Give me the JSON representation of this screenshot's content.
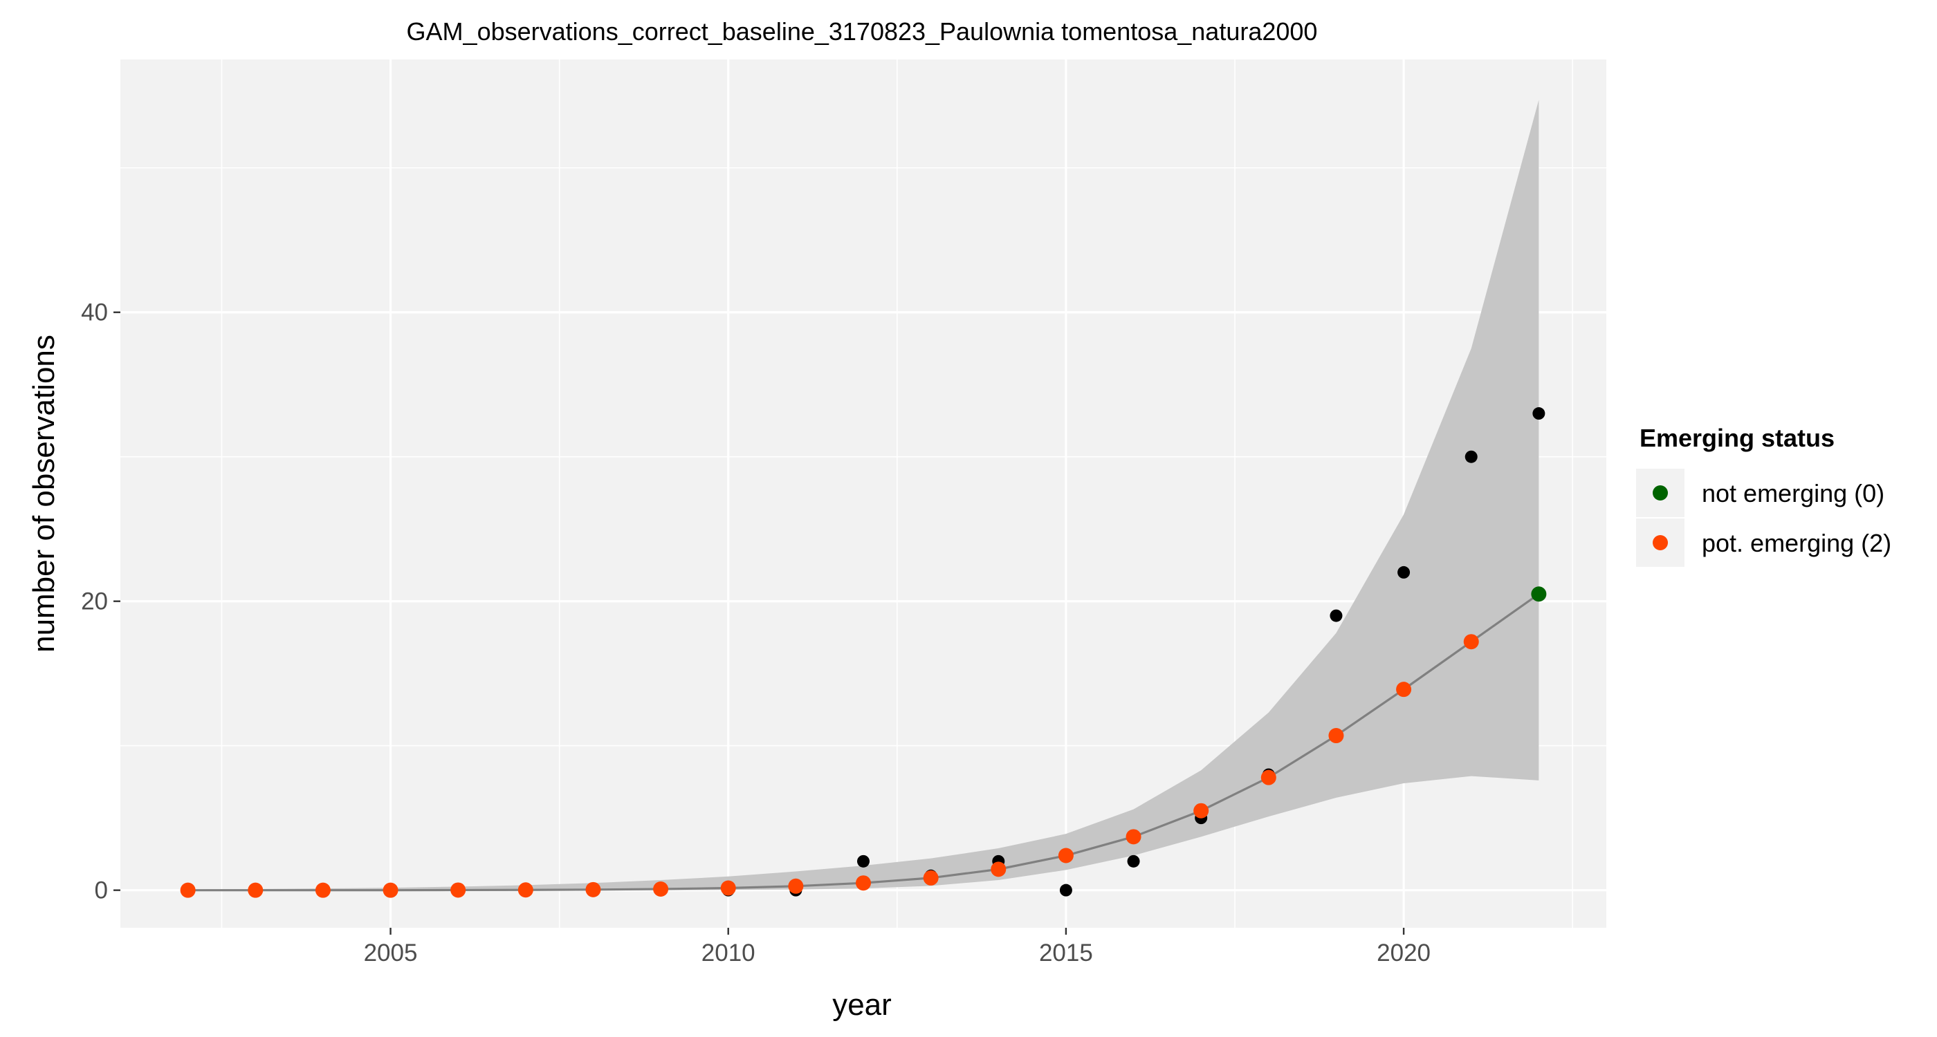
{
  "chart_data": {
    "type": "scatter",
    "title": "GAM_observations_correct_baseline_3170823_Paulownia tomentosa_natura2000",
    "xlabel": "year",
    "ylabel": "number of observations",
    "xlim": [
      2001.0,
      2023.0
    ],
    "ylim": [
      -2.6,
      57.5
    ],
    "x_ticks": [
      2005,
      2010,
      2015,
      2020
    ],
    "x_tick_labels": [
      "2005",
      "2010",
      "2015",
      "2020"
    ],
    "y_ticks": [
      0,
      20,
      40
    ],
    "y_tick_labels": [
      "0",
      "20",
      "40"
    ],
    "grid": true,
    "legend": {
      "title": "Emerging status",
      "placement": "right",
      "entries": [
        {
          "label": "not emerging (0)",
          "color": "#006400"
        },
        {
          "label": "pot. emerging (2)",
          "color": "#ff4500"
        }
      ]
    },
    "observed": {
      "color": "#000000",
      "points": [
        {
          "x": 2002,
          "y": 0
        },
        {
          "x": 2003,
          "y": 0
        },
        {
          "x": 2004,
          "y": 0
        },
        {
          "x": 2005,
          "y": 0
        },
        {
          "x": 2006,
          "y": 0
        },
        {
          "x": 2007,
          "y": 0
        },
        {
          "x": 2008,
          "y": 0
        },
        {
          "x": 2009,
          "y": 0
        },
        {
          "x": 2010,
          "y": 0
        },
        {
          "x": 2011,
          "y": 0
        },
        {
          "x": 2012,
          "y": 2
        },
        {
          "x": 2013,
          "y": 1
        },
        {
          "x": 2014,
          "y": 2
        },
        {
          "x": 2015,
          "y": 0
        },
        {
          "x": 2016,
          "y": 2
        },
        {
          "x": 2017,
          "y": 5
        },
        {
          "x": 2018,
          "y": 8
        },
        {
          "x": 2019,
          "y": 19
        },
        {
          "x": 2020,
          "y": 22
        },
        {
          "x": 2021,
          "y": 30
        },
        {
          "x": 2022,
          "y": 33
        }
      ]
    },
    "fitted": {
      "line_color": "#808080",
      "band_color": "#c6c6c6",
      "points": [
        {
          "x": 2002,
          "y": 0.0,
          "lower": 0.0,
          "upper": 0.05,
          "status": "pot. emerging (2)"
        },
        {
          "x": 2003,
          "y": 0.0,
          "lower": 0.0,
          "upper": 0.08,
          "status": "pot. emerging (2)"
        },
        {
          "x": 2004,
          "y": 0.0,
          "lower": 0.0,
          "upper": 0.12,
          "status": "pot. emerging (2)"
        },
        {
          "x": 2005,
          "y": 0.0,
          "lower": 0.0,
          "upper": 0.17,
          "status": "pot. emerging (2)"
        },
        {
          "x": 2006,
          "y": 0.01,
          "lower": 0.0,
          "upper": 0.25,
          "status": "pot. emerging (2)"
        },
        {
          "x": 2007,
          "y": 0.02,
          "lower": 0.0,
          "upper": 0.35,
          "status": "pot. emerging (2)"
        },
        {
          "x": 2008,
          "y": 0.04,
          "lower": 0.0,
          "upper": 0.5,
          "status": "pot. emerging (2)"
        },
        {
          "x": 2009,
          "y": 0.08,
          "lower": 0.0,
          "upper": 0.7,
          "status": "pot. emerging (2)"
        },
        {
          "x": 2010,
          "y": 0.15,
          "lower": 0.02,
          "upper": 0.95,
          "status": "pot. emerging (2)"
        },
        {
          "x": 2011,
          "y": 0.28,
          "lower": 0.05,
          "upper": 1.3,
          "status": "pot. emerging (2)"
        },
        {
          "x": 2012,
          "y": 0.5,
          "lower": 0.12,
          "upper": 1.7,
          "status": "pot. emerging (2)"
        },
        {
          "x": 2013,
          "y": 0.85,
          "lower": 0.3,
          "upper": 2.2,
          "status": "pot. emerging (2)"
        },
        {
          "x": 2014,
          "y": 1.45,
          "lower": 0.7,
          "upper": 2.9,
          "status": "pot. emerging (2)"
        },
        {
          "x": 2015,
          "y": 2.4,
          "lower": 1.4,
          "upper": 3.9,
          "status": "pot. emerging (2)"
        },
        {
          "x": 2016,
          "y": 3.7,
          "lower": 2.4,
          "upper": 5.6,
          "status": "pot. emerging (2)"
        },
        {
          "x": 2017,
          "y": 5.5,
          "lower": 3.7,
          "upper": 8.3,
          "status": "pot. emerging (2)"
        },
        {
          "x": 2018,
          "y": 7.8,
          "lower": 5.1,
          "upper": 12.3,
          "status": "pot. emerging (2)"
        },
        {
          "x": 2019,
          "y": 10.7,
          "lower": 6.4,
          "upper": 17.8,
          "status": "pot. emerging (2)"
        },
        {
          "x": 2020,
          "y": 13.9,
          "lower": 7.4,
          "upper": 26.0,
          "status": "pot. emerging (2)"
        },
        {
          "x": 2021,
          "y": 17.2,
          "lower": 7.9,
          "upper": 37.5,
          "status": "pot. emerging (2)"
        },
        {
          "x": 2022,
          "y": 20.5,
          "lower": 7.6,
          "upper": 54.7,
          "status": "not emerging (0)"
        }
      ]
    }
  }
}
